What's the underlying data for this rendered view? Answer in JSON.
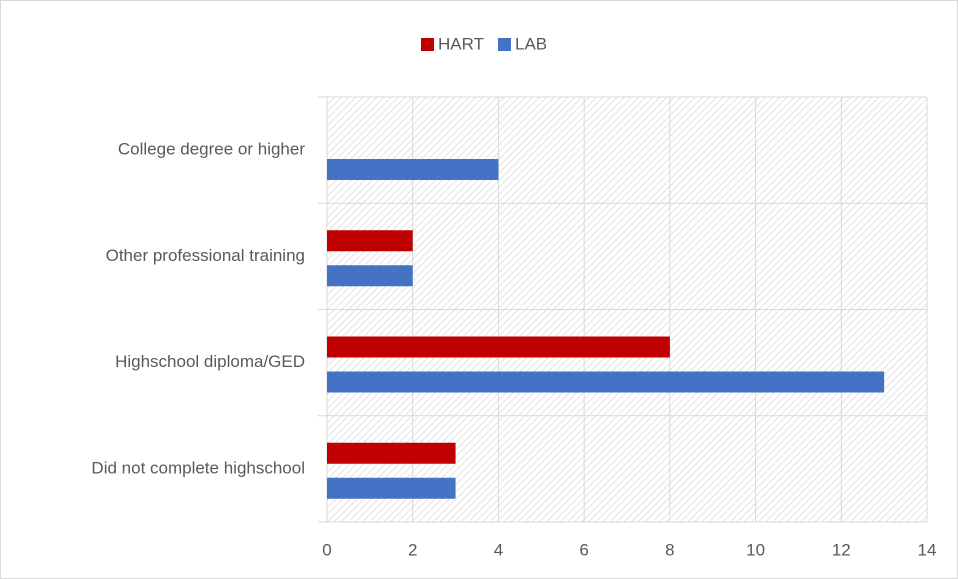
{
  "chart_data": {
    "type": "hbar",
    "categories": [
      "College degree or higher",
      "Other professional training",
      "Highschool diploma/GED",
      "Did not complete highschool"
    ],
    "series": [
      {
        "name": "HART",
        "color": "#c00000",
        "values": [
          0,
          2,
          8,
          3
        ]
      },
      {
        "name": "LAB",
        "color": "#4472c4",
        "values": [
          4,
          2,
          13,
          3
        ]
      }
    ],
    "xlim": [
      0,
      14
    ],
    "xticks": [
      0,
      2,
      4,
      6,
      8,
      10,
      12,
      14
    ],
    "grid": true,
    "legend": "top"
  }
}
